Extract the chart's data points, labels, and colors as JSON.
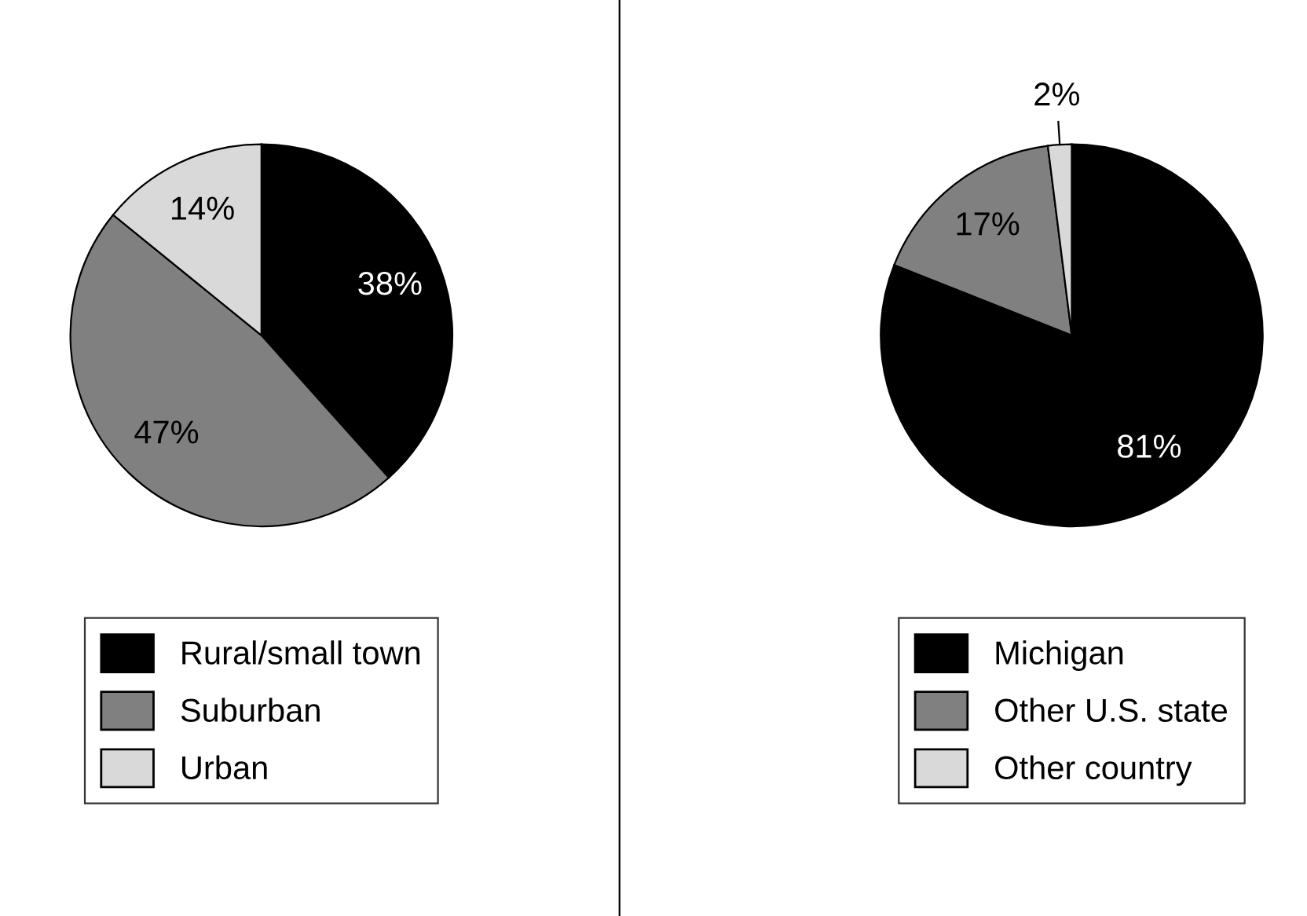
{
  "chart_data": [
    {
      "type": "pie",
      "categories": [
        "Rural/small town",
        "Suburban",
        "Urban"
      ],
      "values": [
        38,
        47,
        14
      ],
      "colors": [
        "#000000",
        "#808080",
        "#d9d9d9"
      ],
      "value_labels": [
        "38%",
        "47%",
        "14%"
      ],
      "legend": "bottom"
    },
    {
      "type": "pie",
      "categories": [
        "Michigan",
        "Other U.S. state",
        "Other country"
      ],
      "values": [
        81,
        17,
        2
      ],
      "colors": [
        "#000000",
        "#808080",
        "#d9d9d9"
      ],
      "value_labels": [
        "81%",
        "17%",
        "2%"
      ],
      "legend": "bottom"
    }
  ]
}
